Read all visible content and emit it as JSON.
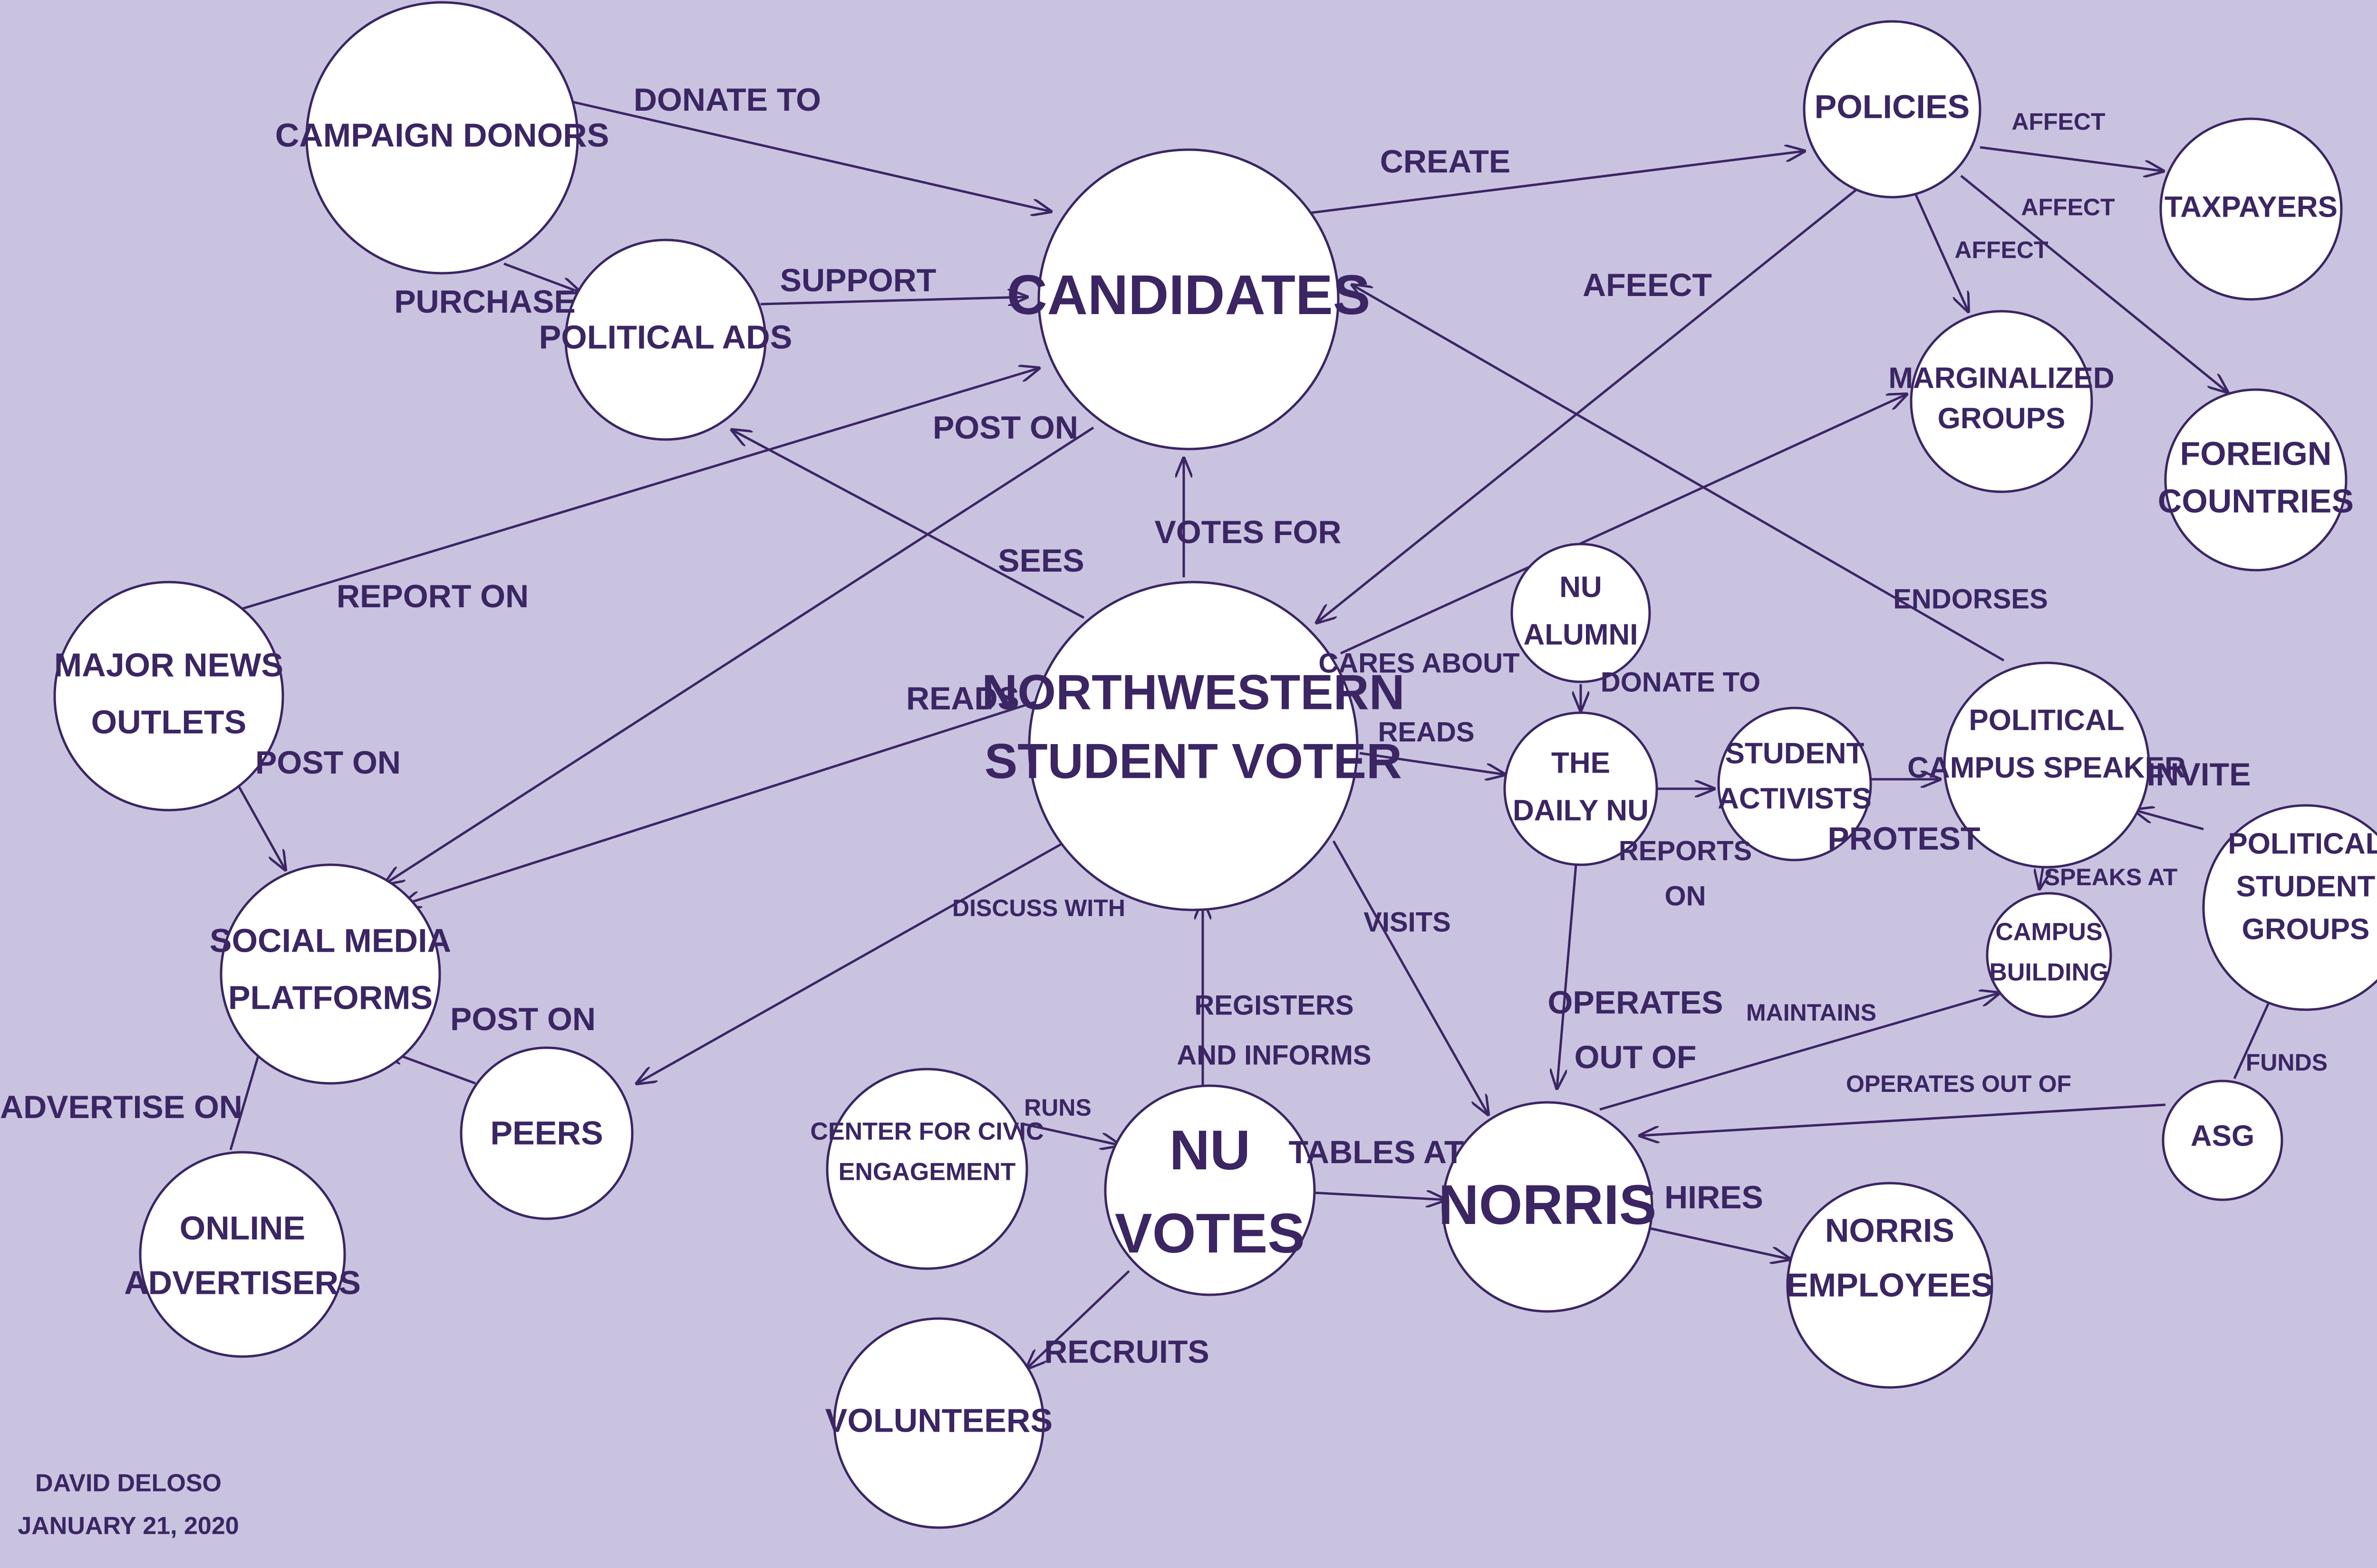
{
  "colors": {
    "background": "#c9c3e0",
    "ink": "#3b2563",
    "node_fill": "#ffffff"
  },
  "nodes": {
    "campaign_donors": "CAMPAIGN DONORS",
    "political_ads": "POLITICAL ADS",
    "candidates": "CANDIDATES",
    "policies": "POLICIES",
    "taxpayers": "TAXPAYERS",
    "marginalized_groups": [
      "MARGINALIZED",
      "GROUPS"
    ],
    "foreign_countries": [
      "FOREIGN",
      "COUNTRIES"
    ],
    "major_news_outlets": [
      "MAJOR NEWS",
      "OUTLETS"
    ],
    "student_voter": [
      "NORTHWESTERN",
      "STUDENT VOTER"
    ],
    "nu_alumni": [
      "NU",
      "ALUMNI"
    ],
    "daily_nu": [
      "THE",
      "DAILY NU"
    ],
    "student_activists": [
      "STUDENT",
      "ACTIVISTS"
    ],
    "campus_speaker": [
      "POLITICAL",
      "CAMPUS SPEAKER"
    ],
    "social_media": [
      "SOCIAL MEDIA",
      "PLATFORMS"
    ],
    "peers": "PEERS",
    "online_advertisers": [
      "ONLINE",
      "ADVERTISERS"
    ],
    "campus_building": [
      "CAMPUS",
      "BUILDING"
    ],
    "political_student_groups": [
      "POLITICAL",
      "STUDENT",
      "GROUPS"
    ],
    "center_civic": [
      "CENTER FOR CIVIC",
      "ENGAGEMENT"
    ],
    "nu_votes": [
      "NU",
      "VOTES"
    ],
    "norris": "NORRIS",
    "norris_employees": [
      "NORRIS",
      "EMPLOYEES"
    ],
    "asg": "ASG",
    "volunteers": "VOLUNTEERS"
  },
  "edges": {
    "donate_to": "DONATE TO",
    "purchase": "PURCHASE",
    "support": "SUPPORT",
    "create": "CREATE",
    "affect_taxpayers": "AFFECT",
    "affect_foreign": "AFFECT",
    "affect_marginalized": "AFFECT",
    "afeect": "AFEECT",
    "post_on_candidates": "POST ON",
    "sees": "SEES",
    "votes_for": "VOTES FOR",
    "report_on": "REPORT ON",
    "reads_social": "READS",
    "cares_about": "CARES ABOUT",
    "reads_daily": "READS",
    "donate_to_daily": "DONATE TO",
    "endorses": "ENDORSES",
    "invite": "INVITE",
    "protest": "PROTEST",
    "reports_on": [
      "REPORTS",
      "ON"
    ],
    "speaks_at": "SPEAKS AT",
    "post_on_news": "POST ON",
    "post_on_peers": "POST ON",
    "advertise_on": "ADVERTISE ON",
    "discuss_with": "DISCUSS WITH",
    "visits": "VISITS",
    "registers_informs": [
      "REGISTERS",
      "AND INFORMS"
    ],
    "operates_out_of_daily": [
      "OPERATES",
      "OUT OF"
    ],
    "maintains": "MAINTAINS",
    "operates_out_of_asg": "OPERATES OUT OF",
    "funds": "FUNDS",
    "runs": "RUNS",
    "tables_at": "TABLES AT",
    "hires": "HIRES",
    "recruits": "RECRUITS"
  },
  "footer": {
    "author": "DAVID DELOSO",
    "date": "JANUARY 21, 2020"
  }
}
